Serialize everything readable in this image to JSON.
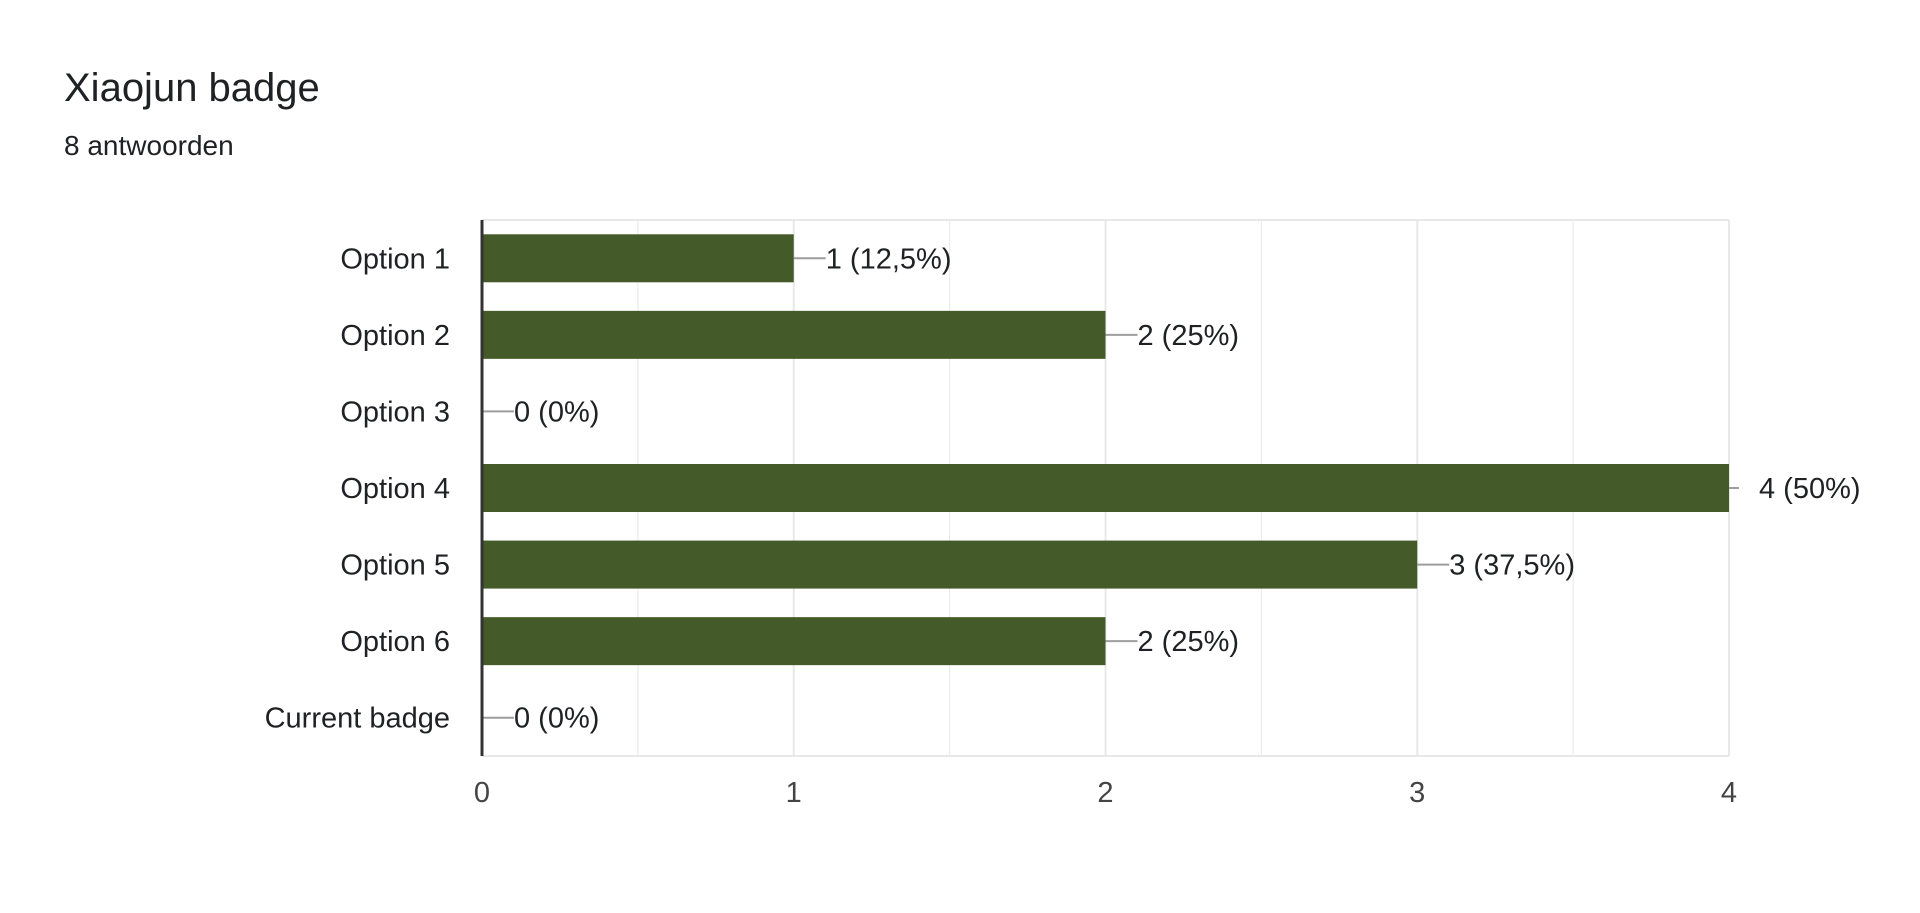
{
  "header": {
    "title": "Xiaojun badge",
    "subtitle": "8 antwoorden"
  },
  "colors": {
    "bar": "#455a29",
    "gridline": "#e8e8e8",
    "axis": "#333333",
    "leader": "#9e9e9e",
    "text": "#202124",
    "tick_text": "#444444"
  },
  "chart_data": {
    "type": "bar",
    "orientation": "horizontal",
    "categories": [
      "Option 1",
      "Option 2",
      "Option 3",
      "Option 4",
      "Option 5",
      "Option 6",
      "Current badge"
    ],
    "values": [
      1,
      2,
      0,
      4,
      3,
      2,
      0
    ],
    "data_labels": [
      "1 (12,5%)",
      "2 (25%)",
      "0 (0%)",
      "4 (50%)",
      "3 (37,5%)",
      "2 (25%)",
      "0 (0%)"
    ],
    "xlim": [
      0,
      4
    ],
    "x_ticks": [
      0,
      1,
      2,
      3,
      4
    ],
    "minor_gridlines": true,
    "grid": true,
    "legend": "none",
    "title": "",
    "xlabel": "",
    "ylabel": ""
  }
}
